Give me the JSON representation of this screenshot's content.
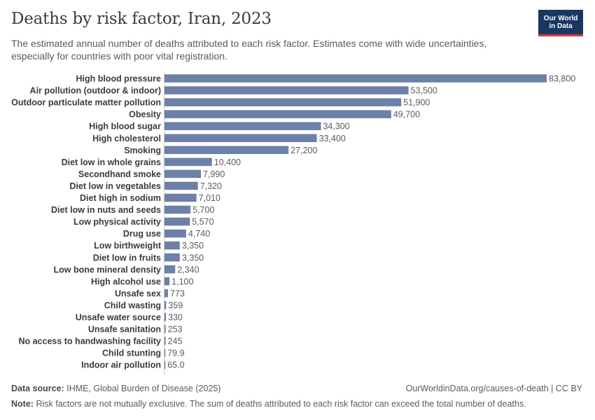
{
  "header": {
    "title": "Deaths by risk factor, Iran, 2023",
    "subtitle": "The estimated annual number of deaths attributed to each risk factor. Estimates come with wide uncertainties, especially for countries with poor vital registration."
  },
  "logo": {
    "line1": "Our World",
    "line2": "in Data"
  },
  "colors": {
    "bar": "#6d80a8",
    "label": "#3b3b3b",
    "value": "#5b5b5b",
    "axis": "#cccccc"
  },
  "chart_data": {
    "type": "bar",
    "orientation": "horizontal",
    "title": "Deaths by risk factor, Iran, 2023",
    "xlabel": "",
    "ylabel": "",
    "xlim": [
      0,
      83800
    ],
    "categories": [
      "High blood pressure",
      "Air pollution (outdoor & indoor)",
      "Outdoor particulate matter pollution",
      "Obesity",
      "High blood sugar",
      "High cholesterol",
      "Smoking",
      "Diet low in whole grains",
      "Secondhand smoke",
      "Diet low in vegetables",
      "Diet high in sodium",
      "Diet low in nuts and seeds",
      "Low physical activity",
      "Drug use",
      "Low birthweight",
      "Diet low in fruits",
      "Low bone mineral density",
      "High alcohol use",
      "Unsafe sex",
      "Child wasting",
      "Unsafe water source",
      "Unsafe sanitation",
      "No access to handwashing facility",
      "Child stunting",
      "Indoor air pollution"
    ],
    "values": [
      83800,
      53500,
      51900,
      49700,
      34300,
      33400,
      27200,
      10400,
      7990,
      7320,
      7010,
      5700,
      5570,
      4740,
      3350,
      3350,
      2340,
      1100,
      773,
      359,
      330,
      253,
      245,
      79.9,
      65.0
    ],
    "value_labels": [
      "83,800",
      "53,500",
      "51,900",
      "49,700",
      "34,300",
      "33,400",
      "27,200",
      "10,400",
      "7,990",
      "7,320",
      "7,010",
      "5,700",
      "5,570",
      "4,740",
      "3,350",
      "3,350",
      "2,340",
      "1,100",
      "773",
      "359",
      "330",
      "253",
      "245",
      "79.9",
      "65.0"
    ]
  },
  "footer": {
    "source_label": "Data source:",
    "source_text": "IHME, Global Burden of Disease (2025)",
    "credit": "OurWorldinData.org/causes-of-death | CC BY",
    "note_label": "Note:",
    "note_text": "Risk factors are not mutually exclusive. The sum of deaths attributed to each risk factor can exceed the total number of deaths."
  }
}
